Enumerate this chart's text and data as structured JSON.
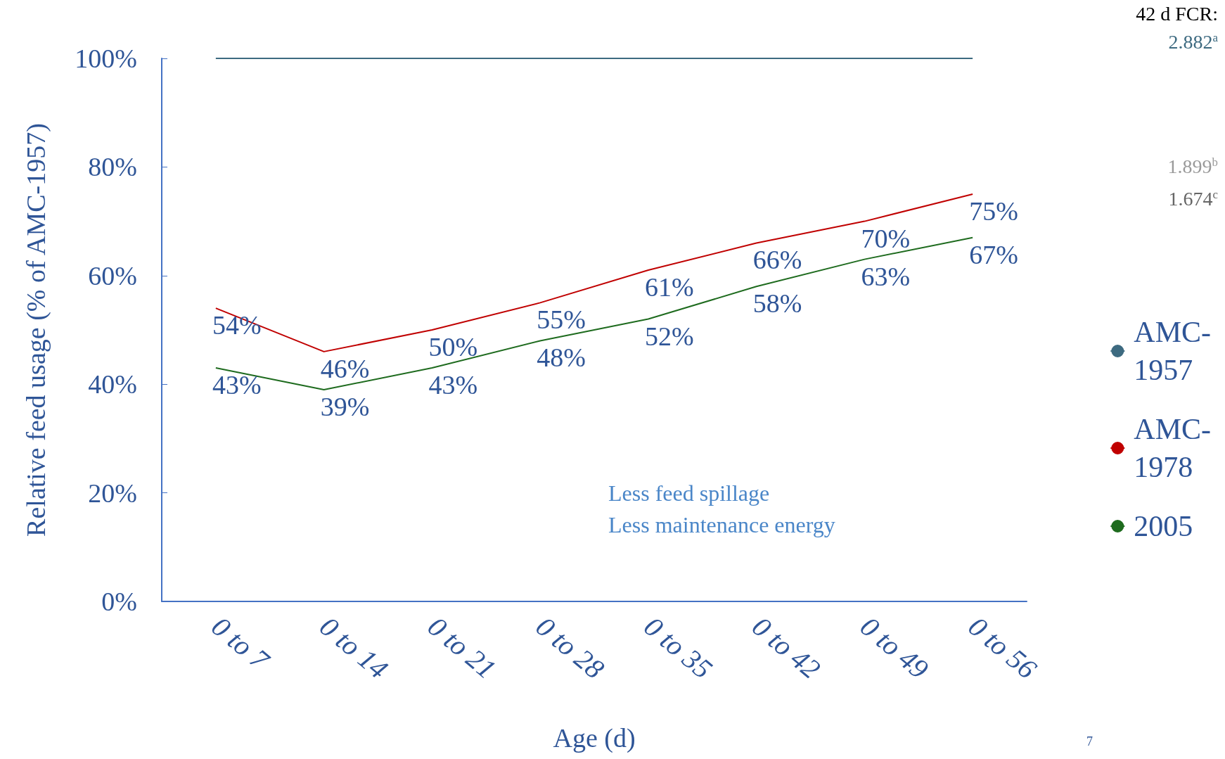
{
  "chart_data": {
    "type": "line",
    "xlabel": "Age (d)",
    "ylabel": "Relative feed usage (% of AMC-1957)",
    "categories": [
      "0 to 7",
      "0 to 14",
      "0 to 21",
      "0 to 28",
      "0 to 35",
      "0 to 42",
      "0 to 49",
      "0 to 56"
    ],
    "series": [
      {
        "name": "AMC-1957",
        "color": "#3d6a80",
        "values": [
          100,
          100,
          100,
          100,
          100,
          100,
          100,
          100
        ]
      },
      {
        "name": "AMC-1978",
        "color": "#c00000",
        "values": [
          54,
          46,
          50,
          55,
          61,
          66,
          70,
          75
        ],
        "value_labels": [
          "54%",
          "46%",
          "50%",
          "55%",
          "61%",
          "66%",
          "70%",
          "75%"
        ]
      },
      {
        "name": "2005",
        "color": "#1e6b1e",
        "values": [
          43,
          39,
          43,
          48,
          52,
          58,
          63,
          67
        ],
        "value_labels": [
          "43%",
          "39%",
          "43%",
          "48%",
          "52%",
          "58%",
          "63%",
          "67%"
        ]
      }
    ],
    "ylim": [
      0,
      100
    ],
    "yticks": [
      {
        "value": 0,
        "label": "0%"
      },
      {
        "value": 20,
        "label": "20%"
      },
      {
        "value": 40,
        "label": "40%"
      },
      {
        "value": 60,
        "label": "60%"
      },
      {
        "value": 80,
        "label": "80%"
      },
      {
        "value": 100,
        "label": "100%"
      }
    ],
    "grid": false,
    "legend": "right",
    "marker": "none",
    "line_style": "solid",
    "annotations": [
      "42 d FCR:",
      "2.882$^{a}$",
      "1.899$^{b}$",
      "1.674$^{c}$",
      "Less feed spillage",
      "Less maintenance energy",
      "7"
    ]
  }
}
